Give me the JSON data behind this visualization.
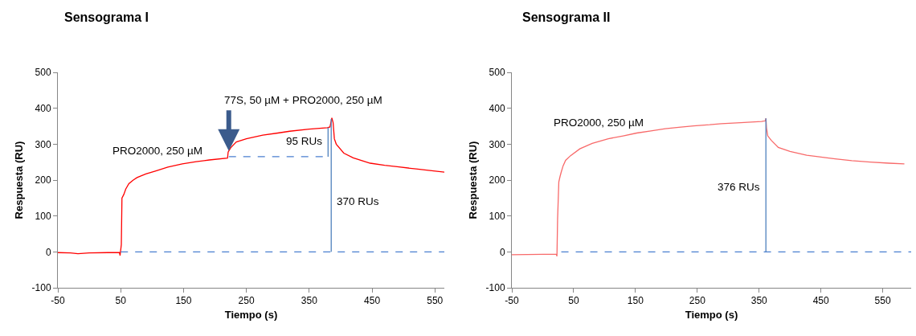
{
  "chart_data": [
    {
      "type": "line",
      "title": "Sensograma I",
      "xlabel": "Tiempo (s)",
      "ylabel": "Respuesta (RU)",
      "xlim": [
        -50,
        565
      ],
      "xticks": [
        -50,
        50,
        150,
        250,
        350,
        450,
        550
      ],
      "ylim": [
        -100,
        500
      ],
      "yticks": [
        -100,
        0,
        100,
        200,
        300,
        400,
        500
      ],
      "grid": false,
      "marker": "none",
      "line_style": "solid",
      "series": [
        {
          "color": "#ff0000",
          "x": [
            -50,
            -30,
            -18,
            0,
            30,
            48,
            49,
            50,
            51,
            52,
            55,
            58,
            63,
            70,
            76,
            90,
            105,
            125,
            148,
            170,
            191,
            220,
            221,
            225,
            234,
            250,
            276,
            300,
            319,
            350,
            379,
            383,
            386,
            388,
            390,
            393,
            405,
            420,
            447,
            470,
            490,
            520,
            545,
            565
          ],
          "values": [
            -2,
            -3,
            -5,
            -3,
            -2,
            -2,
            -10,
            5,
            20,
            150,
            160,
            175,
            190,
            200,
            207,
            217,
            225,
            236,
            245,
            251,
            256,
            261,
            278,
            290,
            306,
            315,
            325,
            331,
            336,
            342,
            346,
            348,
            373,
            360,
            315,
            300,
            275,
            262,
            247,
            241,
            237,
            231,
            226,
            222
          ]
        },
        {
          "color": "#4a7fd0",
          "line_style": "dashed",
          "x": [
            50,
            565
          ],
          "values": [
            0,
            0
          ]
        },
        {
          "color": "#4a7fd0",
          "line_style": "dashed",
          "x": [
            222,
            382
          ],
          "values": [
            265,
            265
          ]
        },
        {
          "color": "#4f81bd",
          "x": [
            380,
            380
          ],
          "values": [
            265,
            346
          ]
        },
        {
          "color": "#4f81bd",
          "x": [
            385,
            385
          ],
          "values": [
            0,
            370
          ]
        }
      ],
      "annotations": [
        {
          "text": "77S, 50 µM + PRO2000, 250 µM",
          "x": 222,
          "y": 281
        },
        "PRO2000, 250 µM",
        "95 RUs",
        "370 RUs"
      ]
    },
    {
      "type": "line",
      "title": "Sensograma II",
      "xlabel": "Tiempo (s)",
      "ylabel": "Respuesta (RU)",
      "xlim": [
        -50,
        596
      ],
      "xticks": [
        -50,
        50,
        150,
        250,
        350,
        450,
        550
      ],
      "ylim": [
        -100,
        500
      ],
      "yticks": [
        -100,
        0,
        100,
        200,
        300,
        400,
        500
      ],
      "grid": false,
      "marker": "none",
      "line_style": "solid",
      "series": [
        {
          "color": "#f86a6a",
          "x": [
            -50,
            0,
            22,
            23,
            24,
            26,
            28,
            30,
            33,
            37,
            45,
            60,
            80,
            106,
            130,
            152,
            175,
            198,
            220,
            244,
            270,
            289,
            320,
            354,
            360,
            361,
            362,
            364,
            370,
            381,
            400,
            427,
            450,
            473,
            500,
            530,
            560,
            585
          ],
          "values": [
            -8,
            -7,
            -7,
            -12,
            90,
            195,
            210,
            223,
            240,
            255,
            268,
            287,
            302,
            315,
            323,
            331,
            337,
            343,
            347,
            351,
            354,
            357,
            360,
            363,
            365,
            372,
            345,
            323,
            310,
            291,
            280,
            269,
            264,
            259,
            254,
            250,
            247,
            245
          ]
        },
        {
          "color": "#4a7fd0",
          "line_style": "dashed",
          "x": [
            30,
            596
          ],
          "values": [
            0,
            0
          ]
        },
        {
          "color": "#4f81bd",
          "x": [
            361,
            361
          ],
          "values": [
            0,
            372
          ]
        }
      ],
      "annotations": [
        "PRO2000, 250 µM",
        "376 RUs"
      ]
    }
  ]
}
